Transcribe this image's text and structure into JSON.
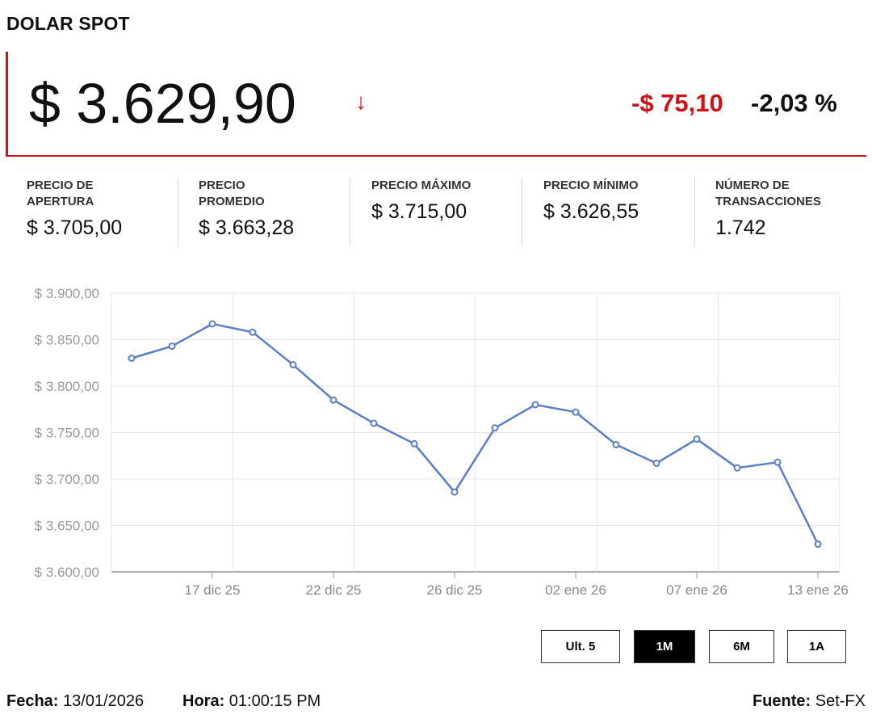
{
  "title": "DOLAR SPOT",
  "price": "$ 3.629,90",
  "direction_icon": "arrow-down-icon",
  "change": "-$ 75,10",
  "change_pct": "-2,03 %",
  "colors": {
    "accent": "#d0111a",
    "line": "#5b7fc4"
  },
  "stats": [
    {
      "label": "PRECIO DE APERTURA",
      "value": "$ 3.705,00"
    },
    {
      "label": "PRECIO PROMEDIO",
      "value": "$ 3.663,28"
    },
    {
      "label": "PRECIO MÁXIMO",
      "value": "$ 3.715,00"
    },
    {
      "label": "PRECIO MÍNIMO",
      "value": "$ 3.626,55"
    },
    {
      "label": "NÚMERO DE TRANSACCIONES",
      "value": "1.742"
    }
  ],
  "ranges": [
    {
      "label": "Ult. 5",
      "active": false
    },
    {
      "label": "1M",
      "active": true
    },
    {
      "label": "6M",
      "active": false
    },
    {
      "label": "1A",
      "active": false
    }
  ],
  "footer": {
    "fecha_label": "Fecha:",
    "fecha": "13/01/2026",
    "hora_label": "Hora:",
    "hora": "01:00:15 PM",
    "fuente_label": "Fuente:",
    "fuente": "Set-FX"
  },
  "chart_data": {
    "type": "line",
    "title": "",
    "ylim": [
      3600,
      3900
    ],
    "yticks": [
      3600,
      3650,
      3700,
      3750,
      3800,
      3850,
      3900
    ],
    "ytick_labels": [
      "$ 3.600,00",
      "$ 3.650,00",
      "$ 3.700,00",
      "$ 3.750,00",
      "$ 3.800,00",
      "$ 3.850,00",
      "$ 3.900,00"
    ],
    "xtick_labels": [
      {
        "index": 2,
        "label": "17 dic 25"
      },
      {
        "index": 5,
        "label": "22 dic 25"
      },
      {
        "index": 8,
        "label": "26 dic 25"
      },
      {
        "index": 11,
        "label": "02 ene 26"
      },
      {
        "index": 14,
        "label": "07 ene 26"
      },
      {
        "index": 17,
        "label": "13 ene 26"
      }
    ],
    "series": [
      {
        "name": "Dolar spot",
        "values": [
          3830,
          3843,
          3867,
          3858,
          3823,
          3785,
          3760,
          3738,
          3686,
          3755,
          3780,
          3772,
          3737,
          3717,
          3743,
          3712,
          3718,
          3629.9
        ]
      }
    ],
    "grid": true
  }
}
